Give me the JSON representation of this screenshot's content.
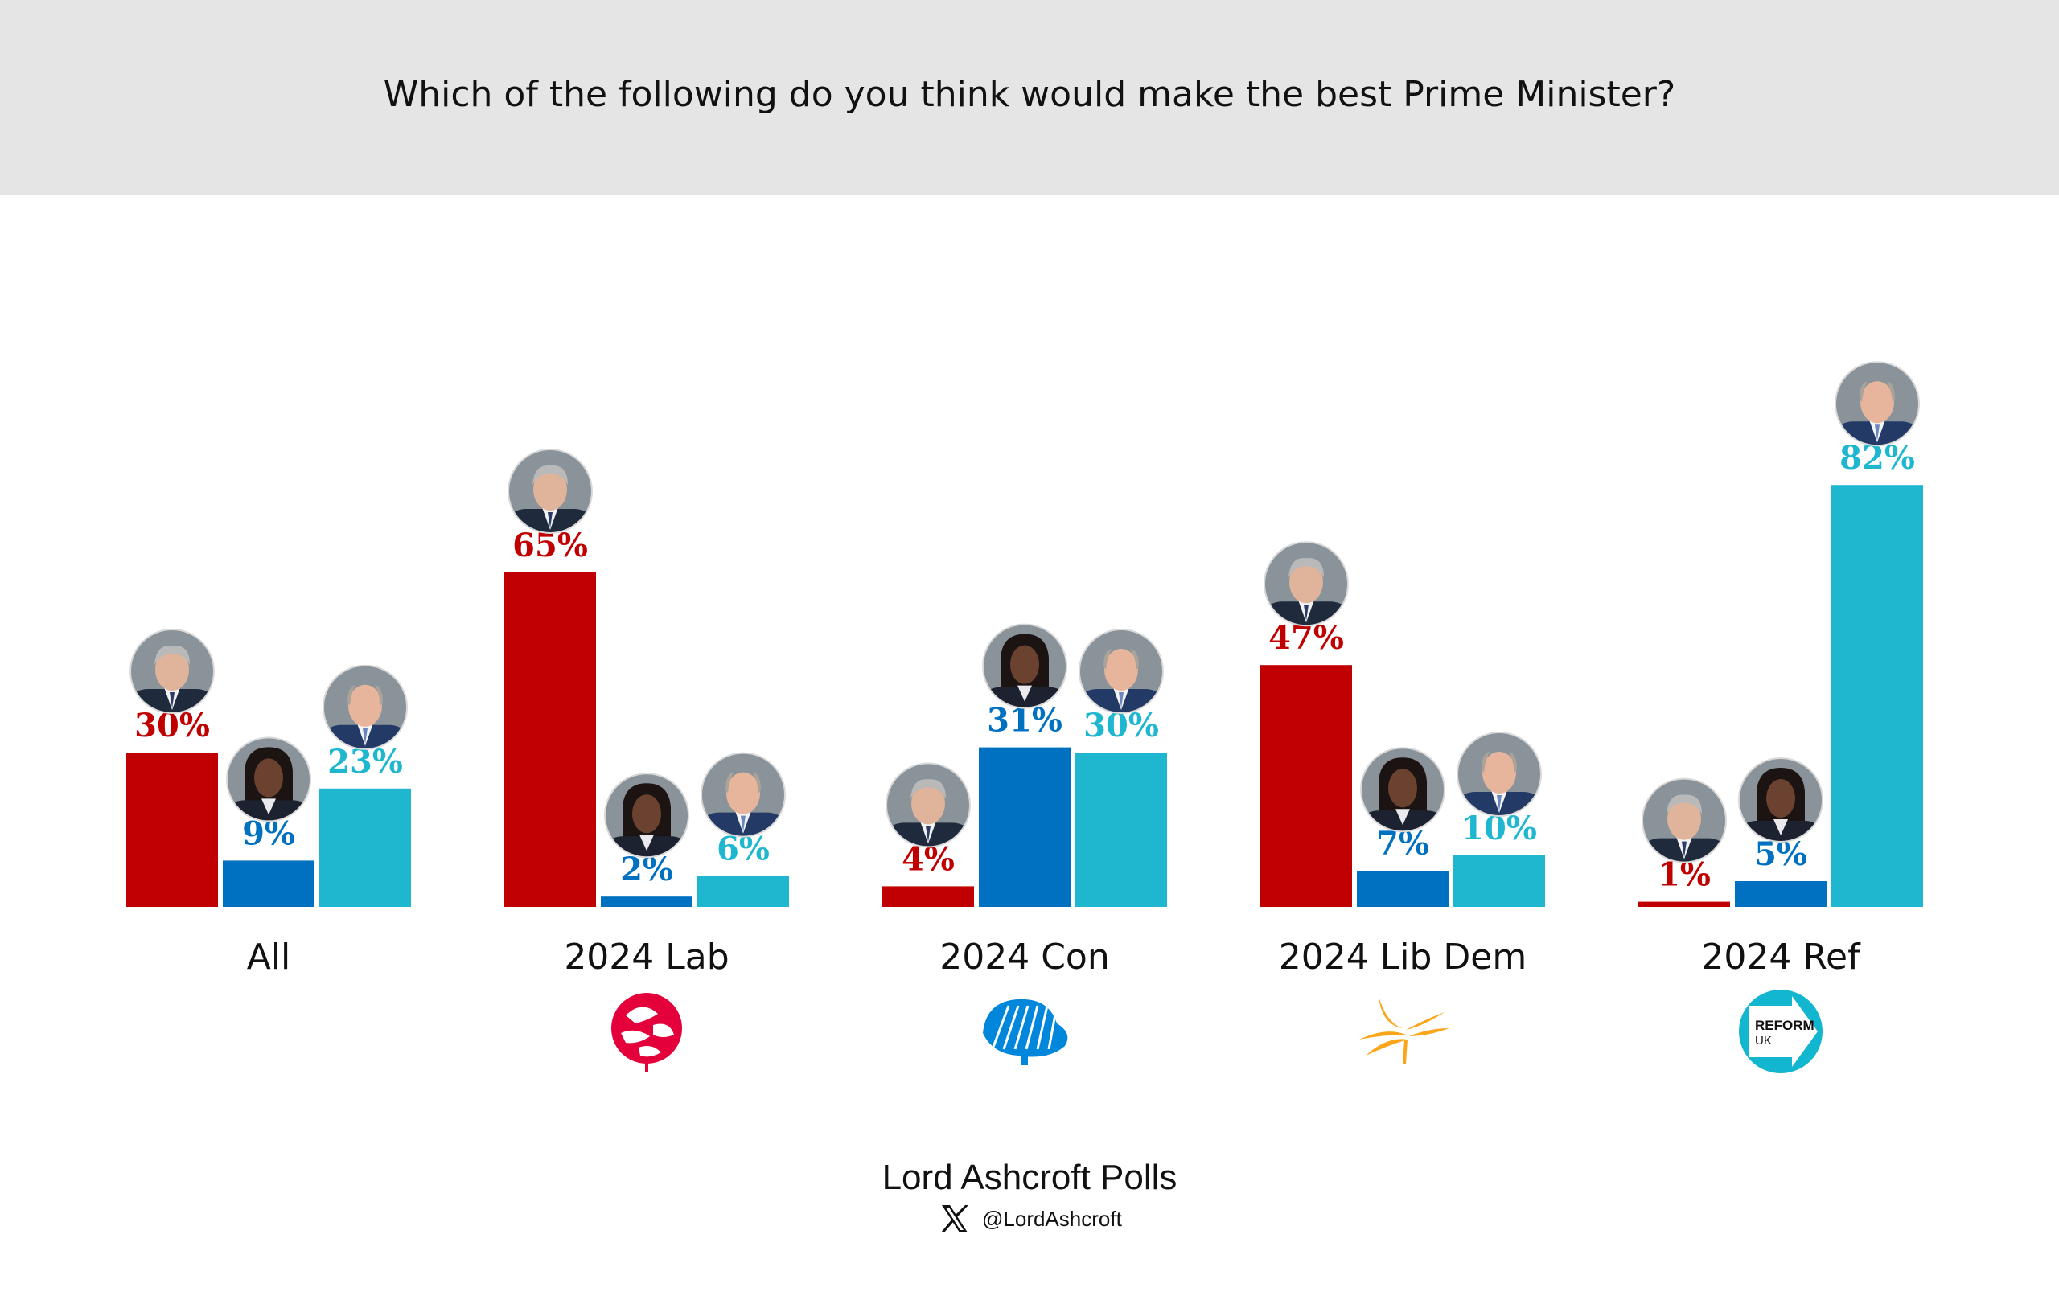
{
  "title": "Which of the following do you think would make the best Prime Minister?",
  "footer": {
    "title": "Lord Ashcroft Polls",
    "handle": "@LordAshcroft",
    "icon": "x-logo-icon"
  },
  "colors": {
    "header_bg": "#e6e5e6",
    "starmer": "#c00000",
    "badenoch": "#0070c0",
    "farage": "#1fb7d0",
    "labour_logo": "#e4003b",
    "conservative_logo": "#0087dc",
    "libdem_logo": "#faa61a",
    "reform_logo": "#12b6cf"
  },
  "chart_data": {
    "type": "bar",
    "title": "Which of the following do you think would make the best Prime Minister?",
    "categories": [
      "All",
      "2024 Lab",
      "2024 Con",
      "2024 Lib Dem",
      "2024 Ref"
    ],
    "category_logos": [
      "",
      "labour-rose-logo",
      "conservative-tree-logo",
      "libdem-bird-logo",
      "reform-uk-logo"
    ],
    "reform_logo_text": [
      "REFORM",
      "UK"
    ],
    "series": [
      {
        "values": [
          30,
          65,
          4,
          47,
          1
        ],
        "labels": [
          "30%",
          "65%",
          "4%",
          "47%",
          "1%"
        ],
        "color": "#c00000",
        "icon": "starmer-portrait-icon"
      },
      {
        "values": [
          9,
          2,
          31,
          7,
          5
        ],
        "labels": [
          "9%",
          "2%",
          "31%",
          "7%",
          "5%"
        ],
        "color": "#0070c0",
        "icon": "badenoch-portrait-icon"
      },
      {
        "values": [
          23,
          6,
          30,
          10,
          82
        ],
        "labels": [
          "23%",
          "6%",
          "30%",
          "10%",
          "82%"
        ],
        "color": "#1fb7d0",
        "icon": "farage-portrait-icon"
      }
    ],
    "ylim": [
      0,
      100
    ],
    "grid": false,
    "legend": "none"
  }
}
